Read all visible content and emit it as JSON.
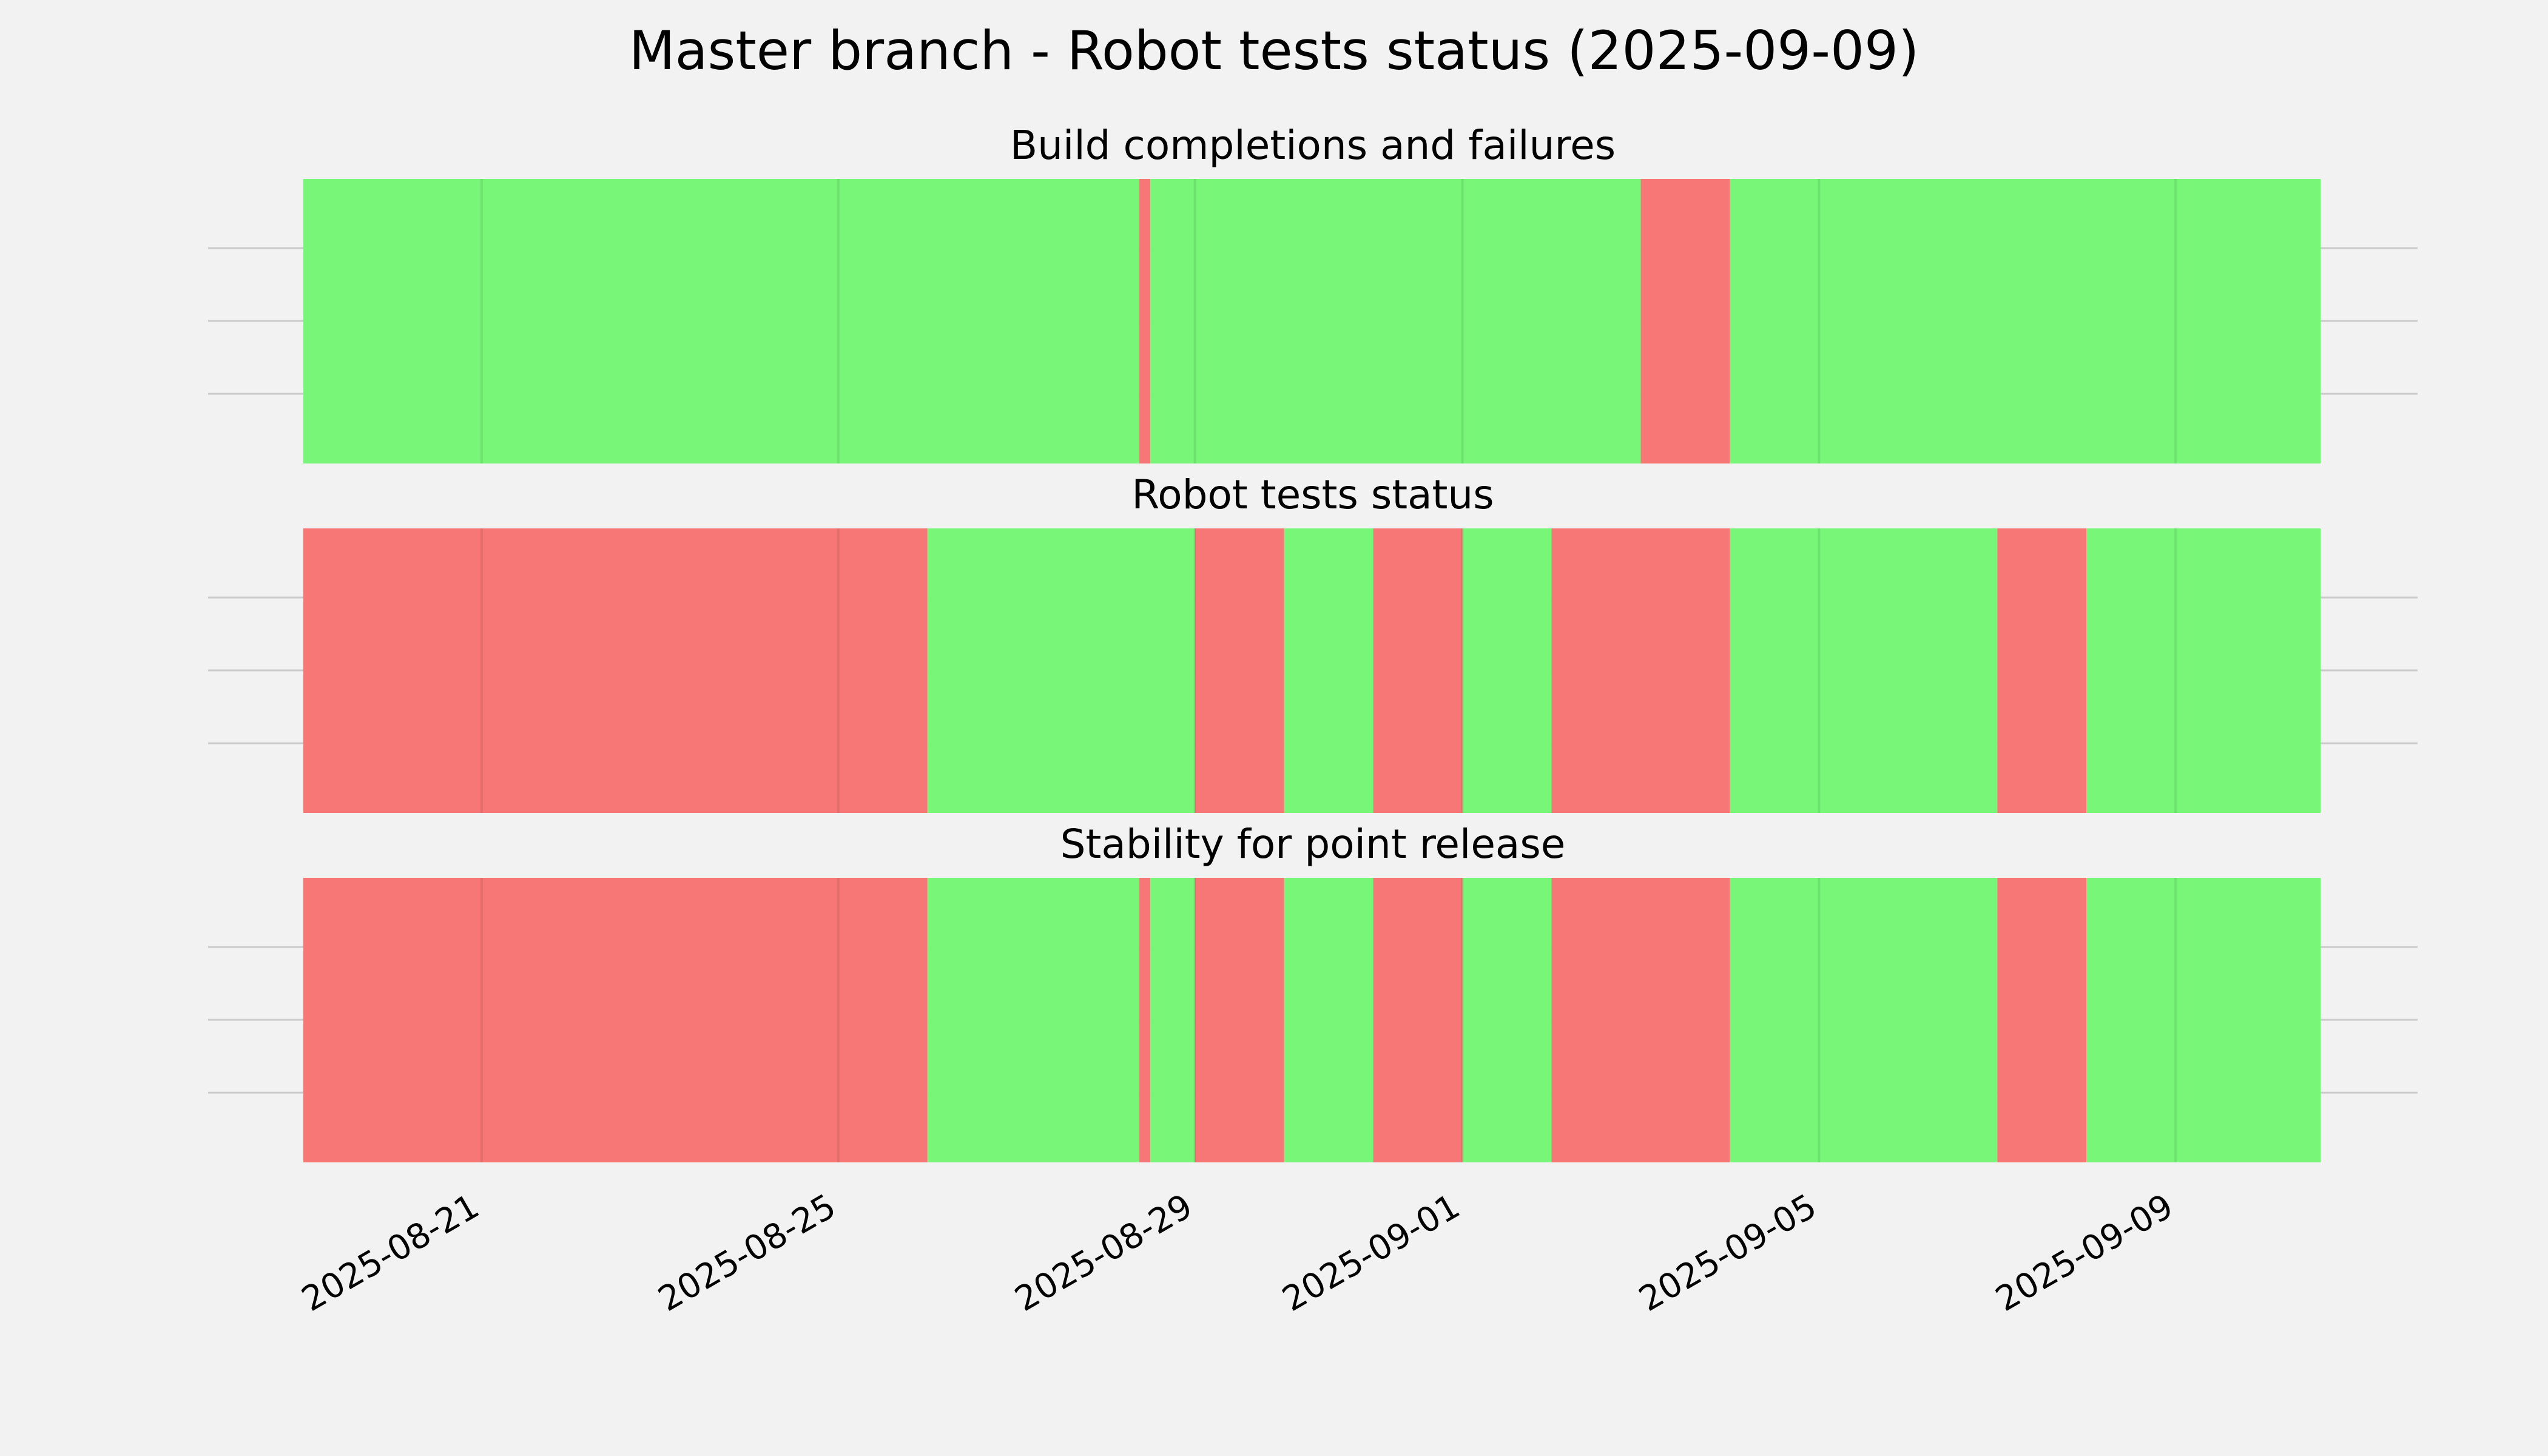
{
  "title": "Master branch - Robot tests status (2025-09-09)",
  "colors": {
    "pass": "#77f677",
    "fail": "#f77777",
    "background": "#f2f2f2",
    "grid": "#cbcbcb"
  },
  "chart_data": {
    "type": "timeline",
    "x_axis": {
      "range": [
        "2025-08-19T00:00",
        "2025-09-10T15:00"
      ],
      "ticks": [
        "2025-08-21",
        "2025-08-25",
        "2025-08-29",
        "2025-09-01",
        "2025-09-05",
        "2025-09-09"
      ]
    },
    "legend": "none",
    "grid": true,
    "panels": [
      {
        "title": "Build completions and failures",
        "segments": [
          {
            "start": "2025-08-19T00:00",
            "end": "2025-08-28T09:00",
            "status": "pass"
          },
          {
            "start": "2025-08-28T09:00",
            "end": "2025-08-28T12:00",
            "status": "fail"
          },
          {
            "start": "2025-08-28T12:00",
            "end": "2025-09-03T00:00",
            "status": "pass"
          },
          {
            "start": "2025-09-03T00:00",
            "end": "2025-09-04T00:00",
            "status": "fail"
          },
          {
            "start": "2025-09-04T00:00",
            "end": "2025-09-10T15:00",
            "status": "pass"
          }
        ]
      },
      {
        "title": "Robot tests status",
        "segments": [
          {
            "start": "2025-08-19T00:00",
            "end": "2025-08-26T00:00",
            "status": "fail"
          },
          {
            "start": "2025-08-26T00:00",
            "end": "2025-08-29T00:00",
            "status": "pass"
          },
          {
            "start": "2025-08-29T00:00",
            "end": "2025-08-30T00:00",
            "status": "fail"
          },
          {
            "start": "2025-08-30T00:00",
            "end": "2025-08-31T00:00",
            "status": "pass"
          },
          {
            "start": "2025-08-31T00:00",
            "end": "2025-09-01T00:00",
            "status": "fail"
          },
          {
            "start": "2025-09-01T00:00",
            "end": "2025-09-02T00:00",
            "status": "pass"
          },
          {
            "start": "2025-09-02T00:00",
            "end": "2025-09-04T00:00",
            "status": "fail"
          },
          {
            "start": "2025-09-04T00:00",
            "end": "2025-09-07T00:00",
            "status": "pass"
          },
          {
            "start": "2025-09-07T00:00",
            "end": "2025-09-08T00:00",
            "status": "fail"
          },
          {
            "start": "2025-09-08T00:00",
            "end": "2025-09-10T15:00",
            "status": "pass"
          }
        ]
      },
      {
        "title": "Stability for point release",
        "segments": [
          {
            "start": "2025-08-19T00:00",
            "end": "2025-08-26T00:00",
            "status": "fail"
          },
          {
            "start": "2025-08-26T00:00",
            "end": "2025-08-28T09:00",
            "status": "pass"
          },
          {
            "start": "2025-08-28T09:00",
            "end": "2025-08-28T12:00",
            "status": "fail"
          },
          {
            "start": "2025-08-28T12:00",
            "end": "2025-08-29T00:00",
            "status": "pass"
          },
          {
            "start": "2025-08-29T00:00",
            "end": "2025-08-30T00:00",
            "status": "fail"
          },
          {
            "start": "2025-08-30T00:00",
            "end": "2025-08-31T00:00",
            "status": "pass"
          },
          {
            "start": "2025-08-31T00:00",
            "end": "2025-09-01T00:00",
            "status": "fail"
          },
          {
            "start": "2025-09-01T00:00",
            "end": "2025-09-02T00:00",
            "status": "pass"
          },
          {
            "start": "2025-09-02T00:00",
            "end": "2025-09-04T00:00",
            "status": "fail"
          },
          {
            "start": "2025-09-04T00:00",
            "end": "2025-09-07T00:00",
            "status": "pass"
          },
          {
            "start": "2025-09-07T00:00",
            "end": "2025-09-08T00:00",
            "status": "fail"
          },
          {
            "start": "2025-09-08T00:00",
            "end": "2025-09-10T15:00",
            "status": "pass"
          }
        ]
      }
    ]
  }
}
